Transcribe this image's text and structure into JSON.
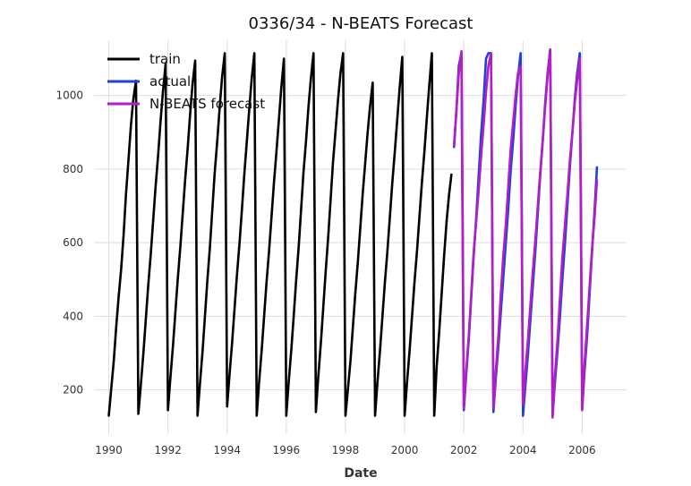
{
  "chart_data": {
    "type": "line",
    "title": "0336/34 - N-BEATS Forecast",
    "xlabel": "Date",
    "ylabel": "",
    "xlim": [
      1989.5,
      2007.5
    ],
    "ylim": [
      80,
      1150
    ],
    "x_ticks": [
      1990,
      1992,
      1994,
      1996,
      1998,
      2000,
      2002,
      2004,
      2006
    ],
    "y_ticks": [
      200,
      400,
      600,
      800,
      1000
    ],
    "grid": true,
    "legend_position": "top-left",
    "series": [
      {
        "name": "train",
        "color": "#000000",
        "points": [
          [
            1990.0,
            130
          ],
          [
            1990.08,
            200
          ],
          [
            1990.17,
            280
          ],
          [
            1990.25,
            370
          ],
          [
            1990.33,
            450
          ],
          [
            1990.42,
            530
          ],
          [
            1990.5,
            620
          ],
          [
            1990.58,
            730
          ],
          [
            1990.67,
            830
          ],
          [
            1990.75,
            920
          ],
          [
            1990.83,
            990
          ],
          [
            1990.92,
            1040
          ],
          [
            1991.0,
            135
          ],
          [
            1991.08,
            210
          ],
          [
            1991.17,
            300
          ],
          [
            1991.25,
            390
          ],
          [
            1991.33,
            480
          ],
          [
            1991.42,
            570
          ],
          [
            1991.5,
            660
          ],
          [
            1991.58,
            750
          ],
          [
            1991.67,
            840
          ],
          [
            1991.75,
            930
          ],
          [
            1991.83,
            1010
          ],
          [
            1991.92,
            1085
          ],
          [
            1992.0,
            145
          ],
          [
            1992.08,
            230
          ],
          [
            1992.17,
            320
          ],
          [
            1992.25,
            410
          ],
          [
            1992.33,
            500
          ],
          [
            1992.42,
            590
          ],
          [
            1992.5,
            680
          ],
          [
            1992.58,
            770
          ],
          [
            1992.67,
            860
          ],
          [
            1992.75,
            950
          ],
          [
            1992.83,
            1030
          ],
          [
            1992.92,
            1095
          ],
          [
            1993.0,
            130
          ],
          [
            1993.08,
            215
          ],
          [
            1993.17,
            305
          ],
          [
            1993.25,
            400
          ],
          [
            1993.33,
            495
          ],
          [
            1993.42,
            590
          ],
          [
            1993.5,
            690
          ],
          [
            1993.58,
            790
          ],
          [
            1993.67,
            880
          ],
          [
            1993.75,
            970
          ],
          [
            1993.83,
            1050
          ],
          [
            1993.92,
            1115
          ],
          [
            1994.0,
            155
          ],
          [
            1994.08,
            240
          ],
          [
            1994.17,
            330
          ],
          [
            1994.25,
            420
          ],
          [
            1994.33,
            510
          ],
          [
            1994.42,
            600
          ],
          [
            1994.5,
            690
          ],
          [
            1994.58,
            785
          ],
          [
            1994.67,
            880
          ],
          [
            1994.75,
            965
          ],
          [
            1994.83,
            1045
          ],
          [
            1994.92,
            1115
          ],
          [
            1995.0,
            130
          ],
          [
            1995.08,
            220
          ],
          [
            1995.17,
            310
          ],
          [
            1995.25,
            400
          ],
          [
            1995.33,
            490
          ],
          [
            1995.42,
            580
          ],
          [
            1995.5,
            670
          ],
          [
            1995.58,
            760
          ],
          [
            1995.67,
            850
          ],
          [
            1995.75,
            935
          ],
          [
            1995.83,
            1020
          ],
          [
            1995.92,
            1100
          ],
          [
            1996.0,
            130
          ],
          [
            1996.08,
            220
          ],
          [
            1996.17,
            310
          ],
          [
            1996.25,
            400
          ],
          [
            1996.33,
            495
          ],
          [
            1996.42,
            590
          ],
          [
            1996.5,
            690
          ],
          [
            1996.58,
            790
          ],
          [
            1996.67,
            880
          ],
          [
            1996.75,
            970
          ],
          [
            1996.83,
            1045
          ],
          [
            1996.92,
            1115
          ],
          [
            1997.0,
            140
          ],
          [
            1997.08,
            235
          ],
          [
            1997.17,
            330
          ],
          [
            1997.25,
            425
          ],
          [
            1997.33,
            520
          ],
          [
            1997.42,
            620
          ],
          [
            1997.5,
            720
          ],
          [
            1997.58,
            820
          ],
          [
            1997.67,
            910
          ],
          [
            1997.75,
            990
          ],
          [
            1997.83,
            1060
          ],
          [
            1997.92,
            1115
          ],
          [
            1998.0,
            130
          ],
          [
            1998.08,
            200
          ],
          [
            1998.17,
            280
          ],
          [
            1998.25,
            370
          ],
          [
            1998.33,
            460
          ],
          [
            1998.42,
            550
          ],
          [
            1998.5,
            640
          ],
          [
            1998.58,
            730
          ],
          [
            1998.67,
            820
          ],
          [
            1998.75,
            900
          ],
          [
            1998.83,
            970
          ],
          [
            1998.92,
            1035
          ],
          [
            1999.0,
            130
          ],
          [
            1999.08,
            220
          ],
          [
            1999.17,
            310
          ],
          [
            1999.25,
            400
          ],
          [
            1999.33,
            490
          ],
          [
            1999.42,
            580
          ],
          [
            1999.5,
            670
          ],
          [
            1999.58,
            760
          ],
          [
            1999.67,
            850
          ],
          [
            1999.75,
            935
          ],
          [
            1999.83,
            1020
          ],
          [
            1999.92,
            1105
          ],
          [
            2000.0,
            130
          ],
          [
            2000.08,
            220
          ],
          [
            2000.17,
            310
          ],
          [
            2000.25,
            400
          ],
          [
            2000.33,
            490
          ],
          [
            2000.42,
            580
          ],
          [
            2000.5,
            670
          ],
          [
            2000.58,
            760
          ],
          [
            2000.67,
            850
          ],
          [
            2000.75,
            940
          ],
          [
            2000.83,
            1025
          ],
          [
            2000.92,
            1115
          ],
          [
            2001.0,
            130
          ],
          [
            2001.08,
            260
          ],
          [
            2001.17,
            360
          ],
          [
            2001.25,
            460
          ],
          [
            2001.33,
            560
          ],
          [
            2001.42,
            660
          ],
          [
            2001.5,
            730
          ],
          [
            2001.58,
            785
          ]
        ]
      },
      {
        "name": "actual",
        "color": "#1f3fe0",
        "points": [
          [
            2001.67,
            860
          ],
          [
            2001.75,
            960
          ],
          [
            2001.83,
            1080
          ],
          [
            2001.92,
            1115
          ],
          [
            2002.0,
            145
          ],
          [
            2002.08,
            240
          ],
          [
            2002.17,
            340
          ],
          [
            2002.25,
            450
          ],
          [
            2002.33,
            560
          ],
          [
            2002.42,
            670
          ],
          [
            2002.5,
            780
          ],
          [
            2002.58,
            890
          ],
          [
            2002.67,
            990
          ],
          [
            2002.75,
            1100
          ],
          [
            2002.83,
            1115
          ],
          [
            2002.92,
            1115
          ],
          [
            2003.0,
            140
          ],
          [
            2003.08,
            230
          ],
          [
            2003.17,
            320
          ],
          [
            2003.25,
            410
          ],
          [
            2003.33,
            500
          ],
          [
            2003.42,
            600
          ],
          [
            2003.5,
            690
          ],
          [
            2003.58,
            790
          ],
          [
            2003.67,
            880
          ],
          [
            2003.75,
            970
          ],
          [
            2003.83,
            1050
          ],
          [
            2003.92,
            1115
          ],
          [
            2004.0,
            130
          ],
          [
            2004.08,
            210
          ],
          [
            2004.17,
            300
          ],
          [
            2004.25,
            390
          ],
          [
            2004.33,
            480
          ],
          [
            2004.42,
            580
          ],
          [
            2004.5,
            680
          ],
          [
            2004.58,
            780
          ],
          [
            2004.67,
            880
          ],
          [
            2004.75,
            980
          ],
          [
            2004.83,
            1060
          ],
          [
            2004.92,
            1125
          ],
          [
            2005.0,
            130
          ],
          [
            2005.08,
            220
          ],
          [
            2005.17,
            310
          ],
          [
            2005.25,
            400
          ],
          [
            2005.33,
            500
          ],
          [
            2005.42,
            600
          ],
          [
            2005.5,
            700
          ],
          [
            2005.58,
            800
          ],
          [
            2005.67,
            900
          ],
          [
            2005.75,
            990
          ],
          [
            2005.83,
            1060
          ],
          [
            2005.92,
            1115
          ],
          [
            2006.0,
            150
          ],
          [
            2006.08,
            250
          ],
          [
            2006.17,
            350
          ],
          [
            2006.25,
            460
          ],
          [
            2006.33,
            570
          ],
          [
            2006.42,
            690
          ],
          [
            2006.5,
            805
          ]
        ]
      },
      {
        "name": "N-BEATS forecast",
        "color": "#b21fc4",
        "points": [
          [
            2001.67,
            865
          ],
          [
            2001.75,
            960
          ],
          [
            2001.83,
            1060
          ],
          [
            2001.92,
            1120
          ],
          [
            2002.0,
            150
          ],
          [
            2002.08,
            250
          ],
          [
            2002.17,
            350
          ],
          [
            2002.25,
            460
          ],
          [
            2002.33,
            570
          ],
          [
            2002.42,
            660
          ],
          [
            2002.5,
            740
          ],
          [
            2002.58,
            830
          ],
          [
            2002.67,
            920
          ],
          [
            2002.75,
            1010
          ],
          [
            2002.83,
            1080
          ],
          [
            2002.92,
            1115
          ],
          [
            2003.0,
            150
          ],
          [
            2003.08,
            250
          ],
          [
            2003.17,
            350
          ],
          [
            2003.25,
            460
          ],
          [
            2003.33,
            560
          ],
          [
            2003.42,
            650
          ],
          [
            2003.5,
            750
          ],
          [
            2003.58,
            850
          ],
          [
            2003.67,
            930
          ],
          [
            2003.75,
            1000
          ],
          [
            2003.83,
            1060
          ],
          [
            2003.92,
            1080
          ],
          [
            2004.0,
            160
          ],
          [
            2004.08,
            250
          ],
          [
            2004.17,
            340
          ],
          [
            2004.25,
            430
          ],
          [
            2004.33,
            520
          ],
          [
            2004.42,
            610
          ],
          [
            2004.5,
            700
          ],
          [
            2004.58,
            790
          ],
          [
            2004.67,
            880
          ],
          [
            2004.75,
            970
          ],
          [
            2004.83,
            1050
          ],
          [
            2004.92,
            1125
          ],
          [
            2005.0,
            125
          ],
          [
            2005.08,
            240
          ],
          [
            2005.17,
            340
          ],
          [
            2005.25,
            450
          ],
          [
            2005.33,
            560
          ],
          [
            2005.42,
            650
          ],
          [
            2005.5,
            730
          ],
          [
            2005.58,
            820
          ],
          [
            2005.67,
            900
          ],
          [
            2005.75,
            980
          ],
          [
            2005.83,
            1040
          ],
          [
            2005.92,
            1100
          ],
          [
            2006.0,
            145
          ],
          [
            2006.08,
            270
          ],
          [
            2006.17,
            380
          ],
          [
            2006.25,
            480
          ],
          [
            2006.33,
            580
          ],
          [
            2006.42,
            670
          ],
          [
            2006.5,
            770
          ]
        ]
      }
    ]
  }
}
